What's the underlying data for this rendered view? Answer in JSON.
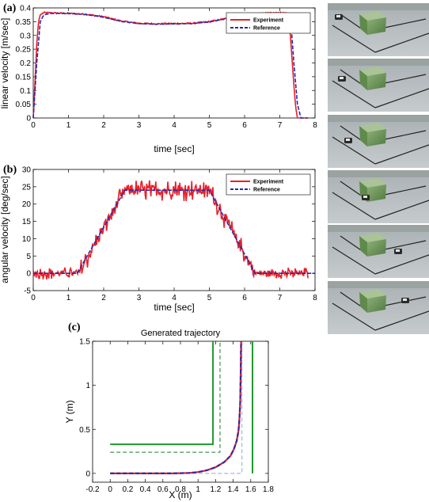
{
  "chart_data": [
    {
      "type": "line",
      "panel_label": "(a)",
      "xlabel": "time [sec]",
      "ylabel": "linear velocity [m/sec]",
      "xlim": [
        0,
        8
      ],
      "ylim": [
        0,
        0.4
      ],
      "xticks": [
        "0",
        "1",
        "2",
        "3",
        "4",
        "5",
        "6",
        "7",
        "8"
      ],
      "yticks": [
        "0",
        "0.05",
        "0.1",
        "0.15",
        "0.2",
        "0.25",
        "0.3",
        "0.35",
        "0.4"
      ],
      "legend_position": "top-right",
      "series": [
        {
          "name": "Experiment",
          "color": "#e8202a",
          "style": "solid",
          "x": [
            0,
            0.05,
            0.1,
            0.15,
            0.2,
            0.3,
            0.5,
            1,
            1.5,
            2,
            2.5,
            3,
            3.5,
            4,
            4.5,
            5,
            5.5,
            6,
            6.5,
            7,
            7.2,
            7.3,
            7.4,
            7.45,
            7.5,
            7.8
          ],
          "y": [
            0,
            0.13,
            0.27,
            0.35,
            0.375,
            0.383,
            0.382,
            0.38,
            0.377,
            0.368,
            0.352,
            0.344,
            0.342,
            0.343,
            0.344,
            0.35,
            0.362,
            0.374,
            0.38,
            0.382,
            0.38,
            0.3,
            0.12,
            0.04,
            0,
            0
          ]
        },
        {
          "name": "Reference",
          "color": "#2a2aa8",
          "style": "dashed",
          "x": [
            0,
            0.1,
            0.2,
            0.3,
            0.5,
            1,
            1.5,
            2,
            2.5,
            3,
            3.5,
            4,
            4.5,
            5,
            5.5,
            6,
            6.5,
            7,
            7.3,
            7.4,
            7.5,
            7.6,
            7.8
          ],
          "y": [
            0,
            0.2,
            0.35,
            0.375,
            0.38,
            0.38,
            0.376,
            0.366,
            0.351,
            0.343,
            0.341,
            0.342,
            0.343,
            0.349,
            0.361,
            0.373,
            0.379,
            0.381,
            0.37,
            0.2,
            0.05,
            0,
            0
          ]
        }
      ]
    },
    {
      "type": "line",
      "panel_label": "(b)",
      "xlabel": "time [sec]",
      "ylabel": "angular velocity [deg/sec]",
      "xlim": [
        0,
        8
      ],
      "ylim": [
        -5,
        30
      ],
      "xticks": [
        "0",
        "1",
        "2",
        "3",
        "4",
        "5",
        "6",
        "7",
        "8"
      ],
      "yticks": [
        "-5",
        "0",
        "5",
        "10",
        "15",
        "20",
        "25",
        "30"
      ],
      "legend_position": "top-right",
      "series": [
        {
          "name": "Experiment",
          "color": "#e8202a",
          "style": "solid",
          "noisy": true,
          "x": [
            0,
            1.2,
            1.3,
            2.6,
            5.0,
            6.3,
            6.4,
            7.8
          ],
          "y": [
            0,
            0,
            0,
            24,
            24,
            0,
            0,
            0
          ]
        },
        {
          "name": "Reference",
          "color": "#2a2aa8",
          "style": "dashed",
          "x": [
            0,
            1.25,
            2.6,
            5.0,
            6.3,
            8
          ],
          "y": [
            0,
            0,
            24,
            24,
            0,
            0
          ]
        }
      ]
    },
    {
      "type": "line",
      "panel_label": "(c)",
      "title": "Generated trajectory",
      "xlabel": "X (m)",
      "ylabel": "Y (m)",
      "xlim": [
        -0.2,
        1.8
      ],
      "ylim": [
        -0.1,
        1.5
      ],
      "xticks": [
        "-0.2",
        "0",
        "0.2",
        "0.4",
        "0.6",
        "0.8",
        "1",
        "1.2",
        "1.4",
        "1.6",
        "1.8"
      ],
      "yticks": [
        "0",
        "0.5",
        "1",
        "1.5"
      ],
      "series": [
        {
          "color": "#e8202a",
          "style": "solid",
          "x": [
            0,
            0.7,
            0.9,
            1.0,
            1.1,
            1.2,
            1.3,
            1.37,
            1.41,
            1.44,
            1.46,
            1.47,
            1.48,
            1.485,
            1.49
          ],
          "y": [
            0,
            0,
            0.005,
            0.015,
            0.035,
            0.07,
            0.13,
            0.2,
            0.28,
            0.37,
            0.48,
            0.6,
            0.8,
            1.1,
            1.5
          ]
        },
        {
          "color": "#2a2aa8",
          "style": "dashed",
          "x": [
            0,
            0.7,
            0.9,
            1.0,
            1.1,
            1.2,
            1.3,
            1.37,
            1.41,
            1.44,
            1.46,
            1.47,
            1.48,
            1.485,
            1.49
          ],
          "y": [
            0,
            0,
            0.005,
            0.015,
            0.035,
            0.07,
            0.13,
            0.2,
            0.28,
            0.37,
            0.48,
            0.6,
            0.8,
            1.1,
            1.5
          ]
        },
        {
          "color": "#1f9a2e",
          "style": "solid",
          "x": [
            0,
            1.17,
            1.17
          ],
          "y": [
            0.33,
            0.33,
            1.5
          ]
        },
        {
          "color": "#1f9a2e",
          "style": "solid",
          "x": [
            1.62,
            1.62
          ],
          "y": [
            0,
            1.5
          ]
        },
        {
          "color": "#1f7a2e",
          "style": "dashed",
          "x": [
            0,
            1.25,
            1.25
          ],
          "y": [
            0.24,
            0.24,
            1.5
          ]
        },
        {
          "color": "#8aa8d8",
          "style": "dashed",
          "x": [
            0,
            1.5,
            1.5
          ],
          "y": [
            0,
            0,
            1.5
          ]
        }
      ]
    }
  ]
}
